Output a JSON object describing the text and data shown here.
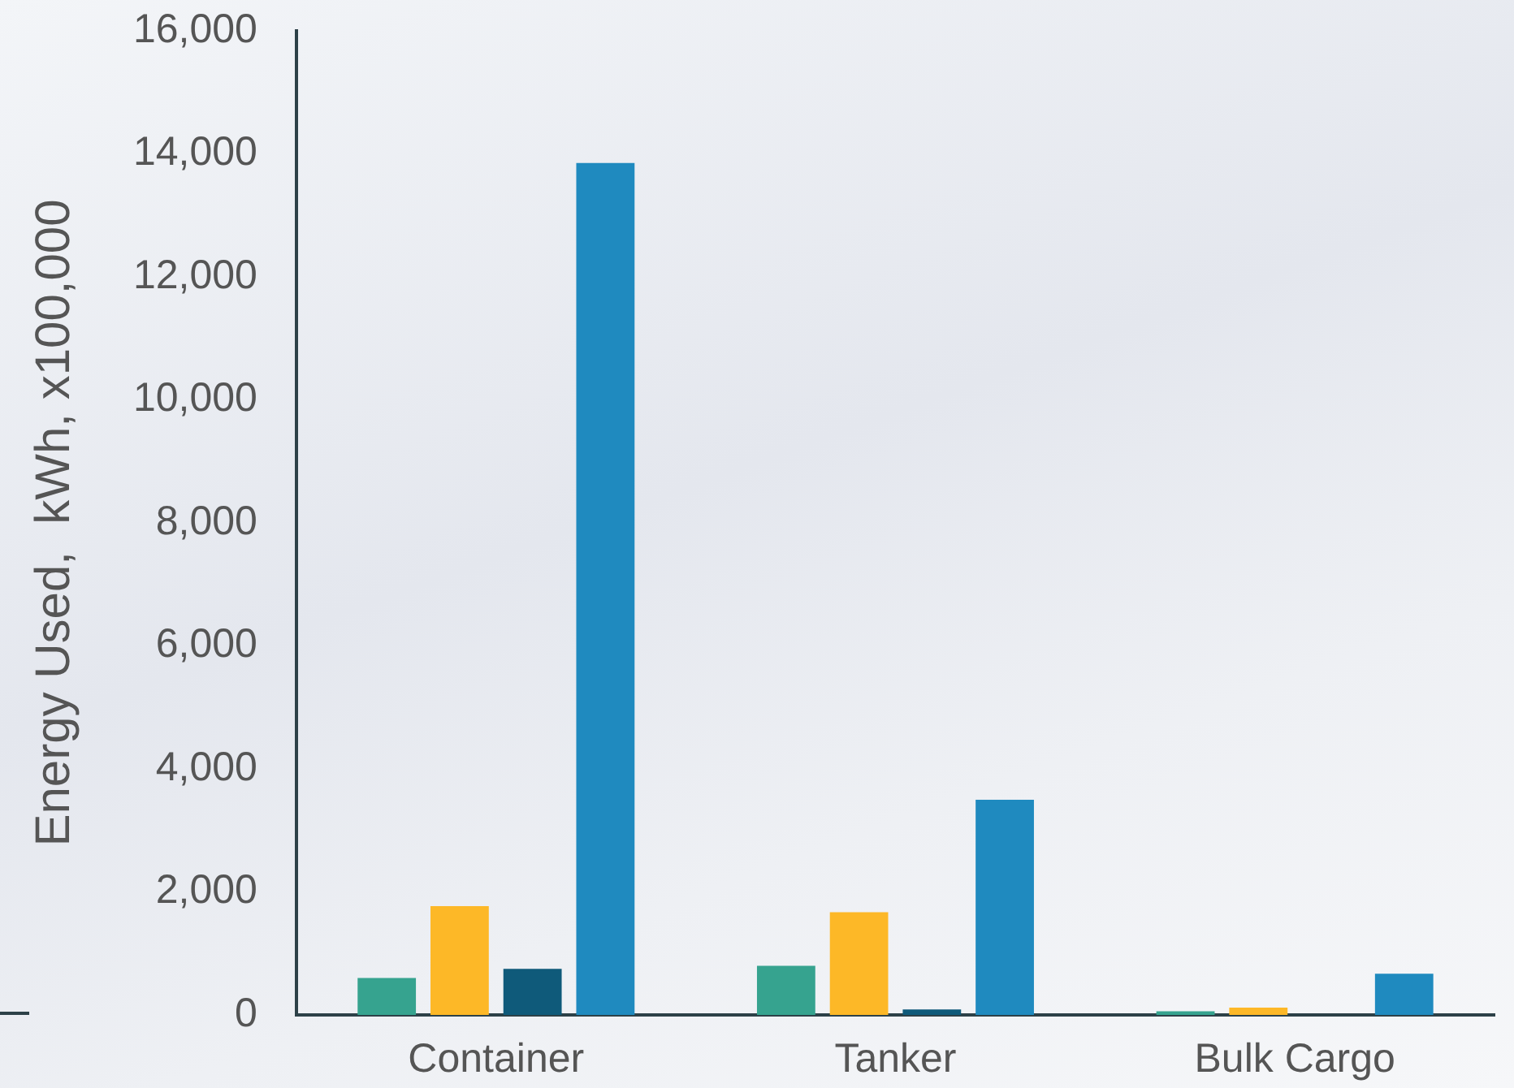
{
  "chart_data": {
    "type": "bar",
    "ylabel": "Energy Used,  kWh, x100,000",
    "categories": [
      "Container",
      "Tanker",
      "Bulk Cargo"
    ],
    "series": [
      {
        "color": "#36a38f",
        "values": [
          600,
          800,
          60
        ]
      },
      {
        "color": "#fdb827",
        "values": [
          1770,
          1670,
          120
        ]
      },
      {
        "color": "#0f5a7a",
        "values": [
          750,
          90,
          null
        ]
      },
      {
        "color": "#1f8abf",
        "values": [
          13850,
          3500,
          670
        ]
      }
    ],
    "ylim": [
      0,
      16000
    ],
    "yticks": [
      0,
      {
        "value": 2000,
        "label": "2,000"
      },
      {
        "value": 4000,
        "label": "4,000"
      },
      {
        "value": 6000,
        "label": "6,000"
      },
      {
        "value": 8000,
        "label": "8,000"
      },
      {
        "value": 10000,
        "label": "10,000"
      },
      {
        "value": 12000,
        "label": "12,000"
      },
      {
        "value": 14000,
        "label": "14,000"
      },
      {
        "value": 16000,
        "label": "16,000"
      }
    ]
  }
}
